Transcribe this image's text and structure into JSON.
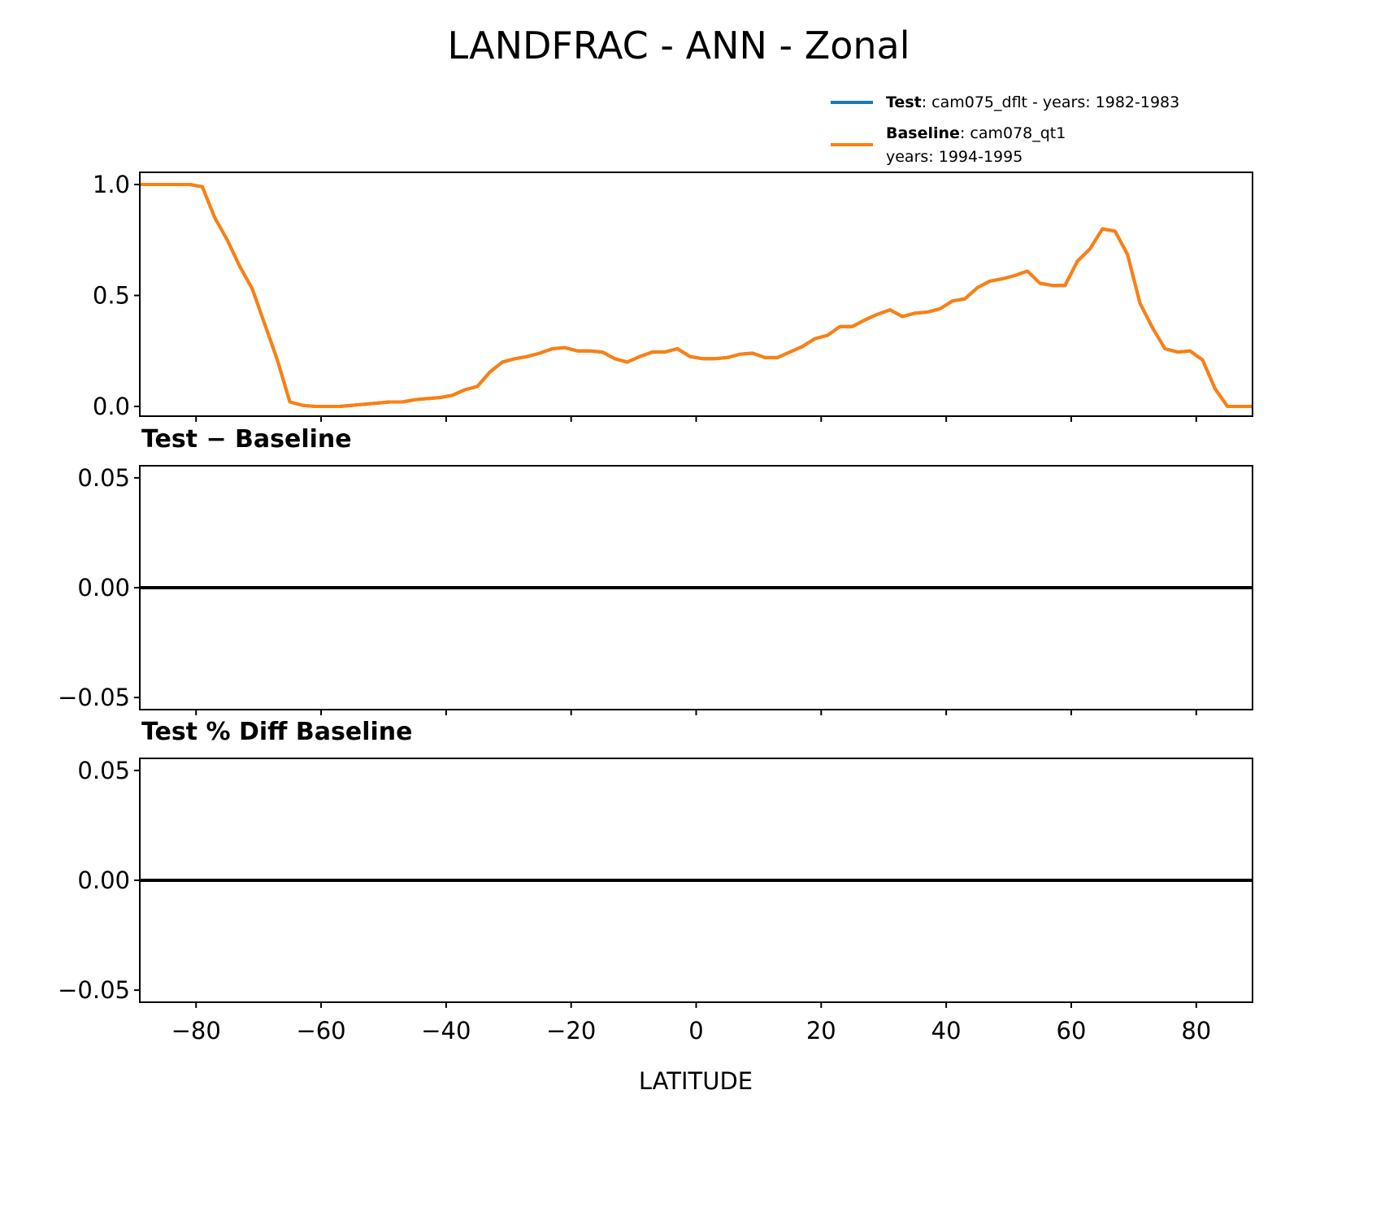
{
  "chart_data": [
    {
      "type": "line",
      "title": "LANDFRAC - ANN - Zonal",
      "xlabel": "",
      "ylabel": "",
      "xlim": [
        -89,
        89
      ],
      "ylim": [
        -0.044,
        1.055
      ],
      "yticks": [
        0.0,
        0.5,
        1.0
      ],
      "ytick_labels": [
        "0.0",
        "0.5",
        "1.0"
      ],
      "xticks": [
        -80,
        -60,
        -40,
        -20,
        0,
        20,
        40,
        60,
        80
      ],
      "legend": {
        "placement": "top-right (above plot)",
        "entries": [
          {
            "bold": "Test",
            "text": ": cam075_dflt - years: 1982-1983",
            "color": "#1f77b4"
          },
          {
            "bold": "Baseline",
            "text": ": cam078_qt1",
            "text2": "years: 1994-1995",
            "color": "#ff7f0e"
          }
        ]
      },
      "x": [
        -89,
        -87,
        -85,
        -83,
        -81,
        -79,
        -77,
        -75,
        -73,
        -71,
        -69,
        -67,
        -65,
        -63,
        -61,
        -59,
        -57,
        -55,
        -53,
        -51,
        -49,
        -47,
        -45,
        -43,
        -41,
        -39,
        -37,
        -35,
        -33,
        -31,
        -29,
        -27,
        -25,
        -23,
        -21,
        -19,
        -17,
        -15,
        -13,
        -11,
        -9,
        -7,
        -5,
        -3,
        -1,
        1,
        3,
        5,
        7,
        9,
        11,
        13,
        15,
        17,
        19,
        21,
        23,
        25,
        27,
        29,
        31,
        33,
        35,
        37,
        39,
        41,
        43,
        45,
        47,
        49,
        51,
        53,
        55,
        57,
        59,
        61,
        63,
        65,
        67,
        69,
        71,
        73,
        75,
        77,
        79,
        81,
        83,
        85,
        87,
        89
      ],
      "series": [
        {
          "name": "Test",
          "color": "#1f77b4",
          "values": [
            1,
            1,
            1,
            1,
            1,
            0.99,
            0.85,
            0.75,
            0.63,
            0.53,
            0.37,
            0.21,
            0.02,
            0.005,
            0,
            0,
            0,
            0.005,
            0.01,
            0.015,
            0.02,
            0.02,
            0.03,
            0.035,
            0.04,
            0.05,
            0.075,
            0.09,
            0.155,
            0.2,
            0.215,
            0.225,
            0.24,
            0.26,
            0.265,
            0.25,
            0.25,
            0.245,
            0.215,
            0.2,
            0.225,
            0.245,
            0.245,
            0.26,
            0.225,
            0.215,
            0.215,
            0.22,
            0.235,
            0.24,
            0.22,
            0.22,
            0.245,
            0.27,
            0.305,
            0.32,
            0.36,
            0.36,
            0.39,
            0.415,
            0.435,
            0.405,
            0.42,
            0.425,
            0.44,
            0.475,
            0.485,
            0.535,
            0.565,
            0.575,
            0.59,
            0.61,
            0.555,
            0.545,
            0.545,
            0.655,
            0.71,
            0.8,
            0.79,
            0.685,
            0.465,
            0.355,
            0.26,
            0.245,
            0.25,
            0.21,
            0.08,
            0,
            0,
            0
          ]
        },
        {
          "name": "Baseline",
          "color": "#ff7f0e",
          "values": [
            1,
            1,
            1,
            1,
            1,
            0.99,
            0.85,
            0.75,
            0.63,
            0.53,
            0.37,
            0.21,
            0.02,
            0.005,
            0,
            0,
            0,
            0.005,
            0.01,
            0.015,
            0.02,
            0.02,
            0.03,
            0.035,
            0.04,
            0.05,
            0.075,
            0.09,
            0.155,
            0.2,
            0.215,
            0.225,
            0.24,
            0.26,
            0.265,
            0.25,
            0.25,
            0.245,
            0.215,
            0.2,
            0.225,
            0.245,
            0.245,
            0.26,
            0.225,
            0.215,
            0.215,
            0.22,
            0.235,
            0.24,
            0.22,
            0.22,
            0.245,
            0.27,
            0.305,
            0.32,
            0.36,
            0.36,
            0.39,
            0.415,
            0.435,
            0.405,
            0.42,
            0.425,
            0.44,
            0.475,
            0.485,
            0.535,
            0.565,
            0.575,
            0.59,
            0.61,
            0.555,
            0.545,
            0.545,
            0.655,
            0.71,
            0.8,
            0.79,
            0.685,
            0.465,
            0.355,
            0.26,
            0.245,
            0.25,
            0.21,
            0.08,
            0,
            0,
            0
          ]
        }
      ]
    },
    {
      "type": "line",
      "title": "Test − Baseline",
      "xlim": [
        -89,
        89
      ],
      "ylim": [
        -0.0555,
        0.0555
      ],
      "yticks": [
        -0.05,
        0.0,
        0.05
      ],
      "ytick_labels": [
        "−0.05",
        "0.00",
        "0.05"
      ],
      "xticks": [
        -80,
        -60,
        -40,
        -20,
        0,
        20,
        40,
        60,
        80
      ],
      "series": [
        {
          "name": "difference",
          "color": "#000000",
          "constant": 0.0
        }
      ]
    },
    {
      "type": "line",
      "title": "Test % Diff Baseline",
      "xlabel": "LATITUDE",
      "xlim": [
        -89,
        89
      ],
      "ylim": [
        -0.0555,
        0.0555
      ],
      "yticks": [
        -0.05,
        0.0,
        0.05
      ],
      "ytick_labels": [
        "−0.05",
        "0.00",
        "0.05"
      ],
      "xticks": [
        -80,
        -60,
        -40,
        -20,
        0,
        20,
        40,
        60,
        80
      ],
      "xtick_labels": [
        "−80",
        "−60",
        "−40",
        "−20",
        "0",
        "20",
        "40",
        "60",
        "80"
      ],
      "series": [
        {
          "name": "percent difference",
          "color": "#000000",
          "constant": 0.0
        }
      ]
    }
  ]
}
